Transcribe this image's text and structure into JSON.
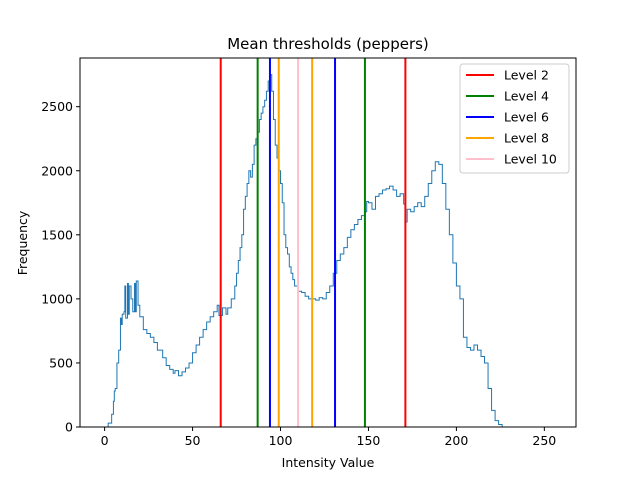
{
  "chart_data": {
    "type": "line",
    "title": "Mean thresholds (peppers)",
    "xlabel": "Intensity Value",
    "ylabel": "Frequency",
    "xlim": [
      -14,
      268
    ],
    "ylim": [
      0,
      2880
    ],
    "xticks": [
      0,
      50,
      100,
      150,
      200,
      250
    ],
    "yticks": [
      0,
      500,
      1000,
      1500,
      2000,
      2500
    ],
    "grid": false,
    "legend_position": "top-right",
    "histogram": {
      "color": "#1f77b4",
      "points": [
        [
          0,
          0
        ],
        [
          2,
          30
        ],
        [
          4,
          100
        ],
        [
          5,
          200
        ],
        [
          5.5,
          280
        ],
        [
          6,
          300
        ],
        [
          7,
          500
        ],
        [
          8,
          600
        ],
        [
          9,
          850
        ],
        [
          9.5,
          800
        ],
        [
          10,
          880
        ],
        [
          11,
          900
        ],
        [
          11.5,
          1100
        ],
        [
          12,
          850
        ],
        [
          13,
          1120
        ],
        [
          13.5,
          880
        ],
        [
          14,
          1100
        ],
        [
          15,
          1000
        ],
        [
          16,
          900
        ],
        [
          17,
          1120
        ],
        [
          17.5,
          900
        ],
        [
          18,
          1140
        ],
        [
          19,
          950
        ],
        [
          20,
          860
        ],
        [
          22,
          760
        ],
        [
          24,
          730
        ],
        [
          26,
          700
        ],
        [
          28,
          660
        ],
        [
          30,
          600
        ],
        [
          33,
          540
        ],
        [
          35,
          480
        ],
        [
          37,
          450
        ],
        [
          39,
          420
        ],
        [
          40,
          440
        ],
        [
          42,
          400
        ],
        [
          44,
          430
        ],
        [
          46,
          460
        ],
        [
          48,
          500
        ],
        [
          50,
          580
        ],
        [
          52,
          640
        ],
        [
          54,
          700
        ],
        [
          56,
          760
        ],
        [
          58,
          820
        ],
        [
          60,
          860
        ],
        [
          62,
          900
        ],
        [
          64,
          950
        ],
        [
          65,
          870
        ],
        [
          67,
          930
        ],
        [
          69,
          880
        ],
        [
          70,
          930
        ],
        [
          72,
          1000
        ],
        [
          74,
          1100
        ],
        [
          75,
          1200
        ],
        [
          76,
          1300
        ],
        [
          77,
          1400
        ],
        [
          78,
          1500
        ],
        [
          79,
          1700
        ],
        [
          80,
          1800
        ],
        [
          81,
          1900
        ],
        [
          82,
          2000
        ],
        [
          83,
          1950
        ],
        [
          84,
          2050
        ],
        [
          85,
          2200
        ],
        [
          86,
          2250
        ],
        [
          87,
          2300
        ],
        [
          88,
          2400
        ],
        [
          89,
          2450
        ],
        [
          90,
          2500
        ],
        [
          91,
          2550
        ],
        [
          92,
          2620
        ],
        [
          93,
          2700
        ],
        [
          94,
          2750
        ],
        [
          95,
          2620
        ],
        [
          96,
          2400
        ],
        [
          97,
          2200
        ],
        [
          98,
          2100
        ],
        [
          99,
          2000
        ],
        [
          100,
          1900
        ],
        [
          101,
          1750
        ],
        [
          102,
          1500
        ],
        [
          103,
          1400
        ],
        [
          104,
          1350
        ],
        [
          105,
          1250
        ],
        [
          106,
          1200
        ],
        [
          107,
          1150
        ],
        [
          108,
          1100
        ],
        [
          110,
          1060
        ],
        [
          112,
          1050
        ],
        [
          114,
          1020
        ],
        [
          116,
          1000
        ],
        [
          118,
          1000
        ],
        [
          120,
          990
        ],
        [
          122,
          1010
        ],
        [
          124,
          1000
        ],
        [
          126,
          1050
        ],
        [
          128,
          1100
        ],
        [
          130,
          1200
        ],
        [
          132,
          1300
        ],
        [
          134,
          1350
        ],
        [
          136,
          1400
        ],
        [
          138,
          1480
        ],
        [
          140,
          1540
        ],
        [
          142,
          1580
        ],
        [
          144,
          1620
        ],
        [
          146,
          1650
        ],
        [
          148,
          1680
        ],
        [
          149,
          1760
        ],
        [
          150,
          1750
        ],
        [
          152,
          1700
        ],
        [
          154,
          1800
        ],
        [
          156,
          1820
        ],
        [
          158,
          1850
        ],
        [
          160,
          1860
        ],
        [
          162,
          1880
        ],
        [
          164,
          1850
        ],
        [
          166,
          1800
        ],
        [
          168,
          1820
        ],
        [
          170,
          1740
        ],
        [
          171,
          1600
        ],
        [
          172,
          1700
        ],
        [
          174,
          1680
        ],
        [
          176,
          1720
        ],
        [
          178,
          1750
        ],
        [
          180,
          1720
        ],
        [
          182,
          1800
        ],
        [
          184,
          1900
        ],
        [
          186,
          2000
        ],
        [
          188,
          2070
        ],
        [
          190,
          2050
        ],
        [
          192,
          1900
        ],
        [
          194,
          1700
        ],
        [
          196,
          1500
        ],
        [
          198,
          1280
        ],
        [
          200,
          1100
        ],
        [
          202,
          1000
        ],
        [
          204,
          700
        ],
        [
          206,
          620
        ],
        [
          208,
          600
        ],
        [
          210,
          640
        ],
        [
          212,
          600
        ],
        [
          214,
          550
        ],
        [
          216,
          500
        ],
        [
          218,
          300
        ],
        [
          220,
          130
        ],
        [
          222,
          50
        ],
        [
          224,
          20
        ],
        [
          226,
          0
        ]
      ]
    },
    "thresholds": [
      {
        "name": "Level 2",
        "color": "#ff0000",
        "x": [
          66,
          171
        ]
      },
      {
        "name": "Level 4",
        "color": "#008000",
        "x": [
          87,
          148
        ]
      },
      {
        "name": "Level 6",
        "color": "#0000ff",
        "x": [
          94,
          131
        ]
      },
      {
        "name": "Level 8",
        "color": "#ffa500",
        "x": [
          99,
          118
        ]
      },
      {
        "name": "Level 10",
        "color": "#ffc0cb",
        "x": [
          110
        ]
      }
    ]
  }
}
